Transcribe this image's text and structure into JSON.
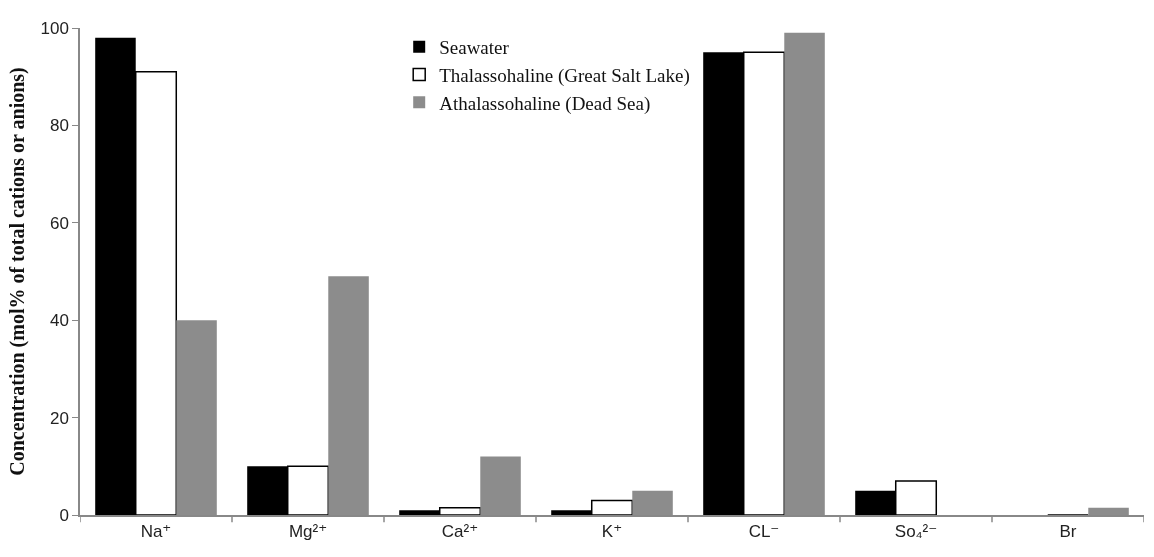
{
  "chart_data": {
    "type": "bar",
    "ylabel": "Concentration (mol% of total cations or anions)",
    "categories": [
      "Na⁺",
      "Mg²⁺",
      "Ca²⁺",
      "K⁺",
      "CL⁻",
      "So₄²⁻",
      "Br"
    ],
    "series": [
      {
        "name": "Seawater",
        "color": "#000000",
        "values": [
          98,
          10,
          1,
          1,
          95,
          5,
          0
        ]
      },
      {
        "name": "Thalassohaline (Great Salt Lake)",
        "color": "#ffffff",
        "values": [
          91,
          10,
          1.5,
          3,
          95,
          7,
          0
        ]
      },
      {
        "name": "Athalassohaline (Dead Sea)",
        "color": "#8c8c8c",
        "values": [
          40,
          49,
          12,
          5,
          99,
          0,
          1.5
        ]
      }
    ],
    "ylim": [
      0,
      100
    ],
    "yticks": [
      0,
      20,
      40,
      60,
      80,
      100
    ],
    "grid": false,
    "legend": "top"
  }
}
